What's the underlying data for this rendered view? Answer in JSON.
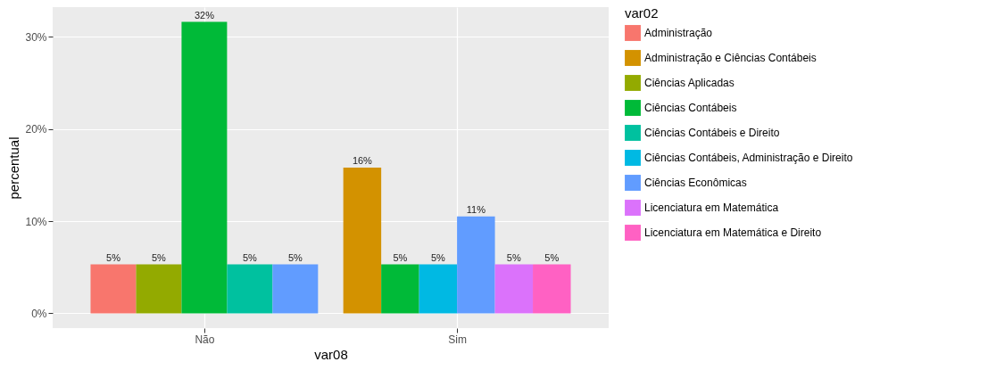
{
  "chart_data": {
    "type": "bar",
    "xlabel": "var08",
    "ylabel": "percentual",
    "legend_title": "var02",
    "categories": [
      "Não",
      "Sim"
    ],
    "series": [
      {
        "name": "Administração",
        "color": "#f8766d",
        "values": [
          5.3,
          null
        ],
        "value_labels": [
          "5%",
          null
        ]
      },
      {
        "name": "Administração e Ciências Contábeis",
        "color": "#d39200",
        "values": [
          null,
          15.8
        ],
        "value_labels": [
          null,
          "16%"
        ]
      },
      {
        "name": "Ciências Aplicadas",
        "color": "#93aa00",
        "values": [
          5.3,
          null
        ],
        "value_labels": [
          "5%",
          null
        ]
      },
      {
        "name": "Ciências Contábeis",
        "color": "#00ba38",
        "values": [
          31.6,
          5.3
        ],
        "value_labels": [
          "32%",
          "5%"
        ]
      },
      {
        "name": "Ciências Contábeis e Direito",
        "color": "#00c19f",
        "values": [
          5.3,
          null
        ],
        "value_labels": [
          "5%",
          null
        ]
      },
      {
        "name": "Ciências Contábeis, Administração e Direito",
        "color": "#00b9e3",
        "values": [
          null,
          5.3
        ],
        "value_labels": [
          null,
          "5%"
        ]
      },
      {
        "name": "Ciências Econômicas",
        "color": "#619cff",
        "values": [
          5.3,
          10.5
        ],
        "value_labels": [
          "5%",
          "11%"
        ]
      },
      {
        "name": "Licenciatura em Matemática",
        "color": "#db72fb",
        "values": [
          null,
          5.3
        ],
        "value_labels": [
          null,
          "5%"
        ]
      },
      {
        "name": "Licenciatura em Matemática e Direito",
        "color": "#ff61c3",
        "values": [
          null,
          5.3
        ],
        "value_labels": [
          null,
          "5%"
        ]
      }
    ],
    "ylim": [
      -1.6,
      33.2
    ],
    "yticks": [
      {
        "value": 0,
        "label": "0%"
      },
      {
        "value": 10,
        "label": "10%"
      },
      {
        "value": 20,
        "label": "20%"
      },
      {
        "value": 30,
        "label": "30%"
      }
    ],
    "grid": true,
    "legend": "right"
  }
}
